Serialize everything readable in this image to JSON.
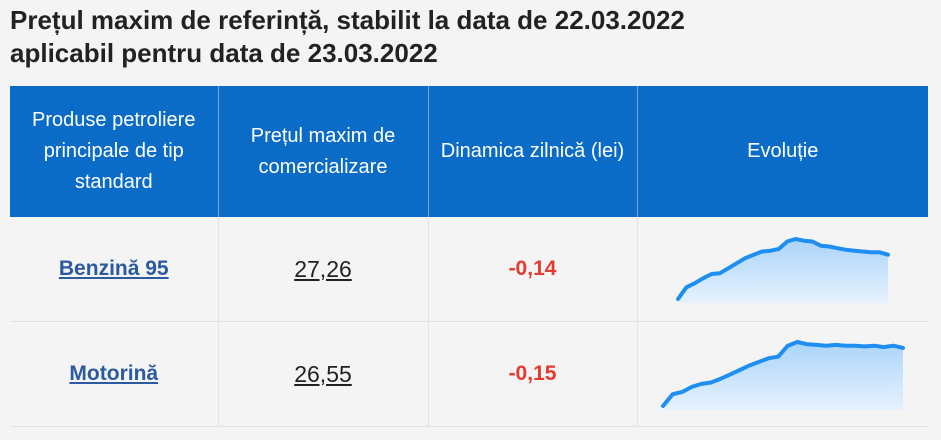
{
  "title_line1": "Prețul maxim de referință, stabilit la data de 22.03.2022",
  "title_line2": "aplicabil pentru data de 23.03.2022",
  "headers": {
    "product": "Produse petroliere principale de tip standard",
    "price": "Prețul maxim de comercializare",
    "dynamics": "Dinamica zilnică (lei)",
    "evolution": "Evoluție"
  },
  "rows": [
    {
      "product": "Benzină 95",
      "price": "27,26",
      "dynamics": "-0,14",
      "trend": [
        24.6,
        25.3,
        25.55,
        25.85,
        26.1,
        26.15,
        26.45,
        26.75,
        27.05,
        27.25,
        27.45,
        27.5,
        27.6,
        28.05,
        28.2,
        28.1,
        28.05,
        27.8,
        27.75,
        27.65,
        27.55,
        27.5,
        27.45,
        27.4,
        27.4,
        27.26
      ]
    },
    {
      "product": "Motorină",
      "price": "26,55",
      "dynamics": "-0,15",
      "trend": [
        22.6,
        23.4,
        23.55,
        23.9,
        24.1,
        24.2,
        24.45,
        24.75,
        25.05,
        25.35,
        25.6,
        25.85,
        25.95,
        26.7,
        26.95,
        26.8,
        26.75,
        26.7,
        26.75,
        26.7,
        26.7,
        26.65,
        26.7,
        26.6,
        26.7,
        26.55
      ]
    }
  ],
  "colors": {
    "header_bg": "#0a6cc7",
    "link": "#2c5aa0",
    "negative": "#e33b2e",
    "spark_line": "#1e8ff0",
    "spark_fill": "#aad4fa"
  }
}
